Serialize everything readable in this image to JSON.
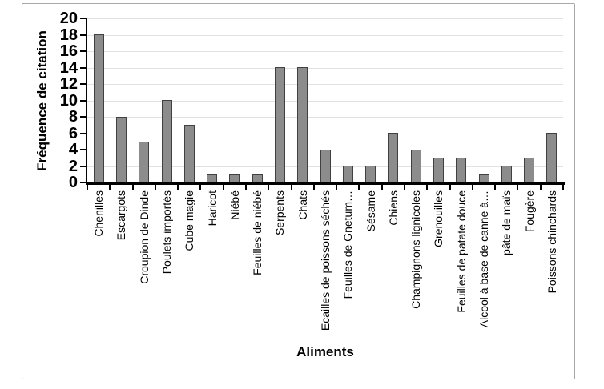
{
  "frame": {
    "background": "#ffffff",
    "border_color": "#a8a8a8"
  },
  "chart_data": {
    "type": "bar",
    "title": "",
    "xlabel": "Aliments",
    "ylabel": "Fréquence de citation",
    "categories": [
      "Chenilles",
      "Escargots",
      "Croupion de Dinde",
      "Poulets importés",
      "Cube magie",
      "Haricot",
      "Niébé",
      "Feuilles de niébé",
      "Serpents",
      "Chats",
      "Ecailles de poissons séchés",
      "Feuilles de Gnetum…",
      "Sésame",
      "Chiens",
      "Champignons lignicoles",
      "Grenouilles",
      "Feuilles de patate douce",
      "Alcool à base de canne à…",
      "pâte de maïs",
      "Fougère",
      "Poissons chinchards"
    ],
    "values": [
      18,
      8,
      5,
      10,
      7,
      1,
      1,
      1,
      14,
      14,
      4,
      2,
      2,
      6,
      4,
      3,
      3,
      1,
      2,
      3,
      6
    ],
    "ylim": [
      0,
      20
    ],
    "ytick_step": 2,
    "yticks": [
      0,
      2,
      4,
      6,
      8,
      10,
      12,
      14,
      16,
      18,
      20
    ],
    "grid": true,
    "legend": null,
    "colors": {
      "bar_fill": "#8c8c8c",
      "bar_border": "#404040",
      "gridline": "#e2e2e2",
      "axis": "#000000",
      "text": "#000000"
    }
  }
}
